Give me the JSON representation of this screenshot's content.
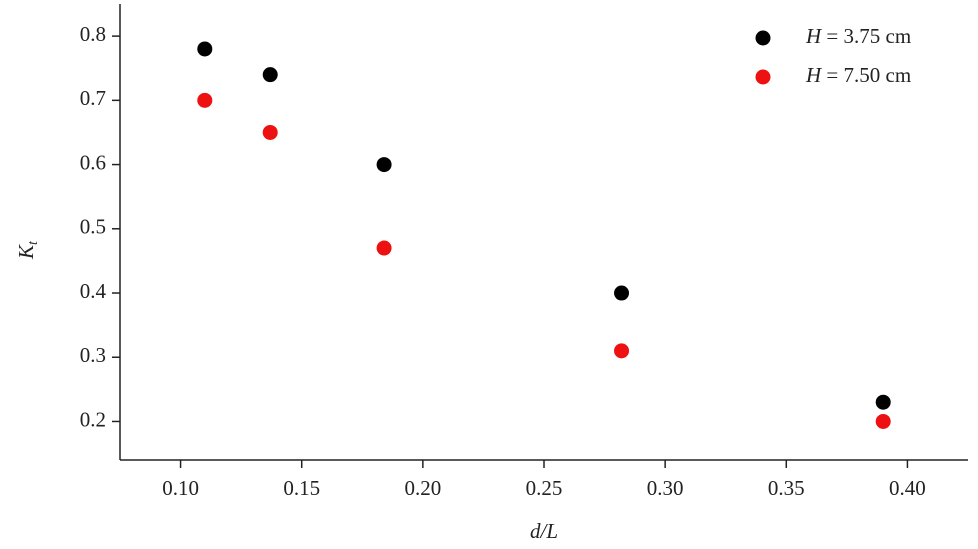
{
  "chart_data": {
    "type": "scatter",
    "x_label": "d/L",
    "y_label": "Kt",
    "x": [
      0.11,
      0.137,
      0.184,
      0.282,
      0.39
    ],
    "series": [
      {
        "name": "H = 3.75 cm",
        "color": "#000000",
        "values": [
          0.78,
          0.74,
          0.6,
          0.4,
          0.23
        ]
      },
      {
        "name": "H = 7.50 cm",
        "color": "#ee1111",
        "values": [
          0.7,
          0.65,
          0.47,
          0.31,
          0.2
        ]
      }
    ],
    "xlim": [
      0.075,
      0.425
    ],
    "xticks": [
      {
        "value": 0.1,
        "label": "0.10"
      },
      {
        "value": 0.15,
        "label": "0.15"
      },
      {
        "value": 0.2,
        "label": "0.20"
      },
      {
        "value": 0.25,
        "label": "0.25"
      },
      {
        "value": 0.3,
        "label": "0.30"
      },
      {
        "value": 0.35,
        "label": "0.35"
      },
      {
        "value": 0.4,
        "label": "0.40"
      }
    ],
    "ylim": [
      0.14,
      0.85
    ],
    "yticks": [
      0.2,
      0.3,
      0.4,
      0.5,
      0.6,
      0.7,
      0.8
    ],
    "legend": "upper-right",
    "grid": false
  }
}
